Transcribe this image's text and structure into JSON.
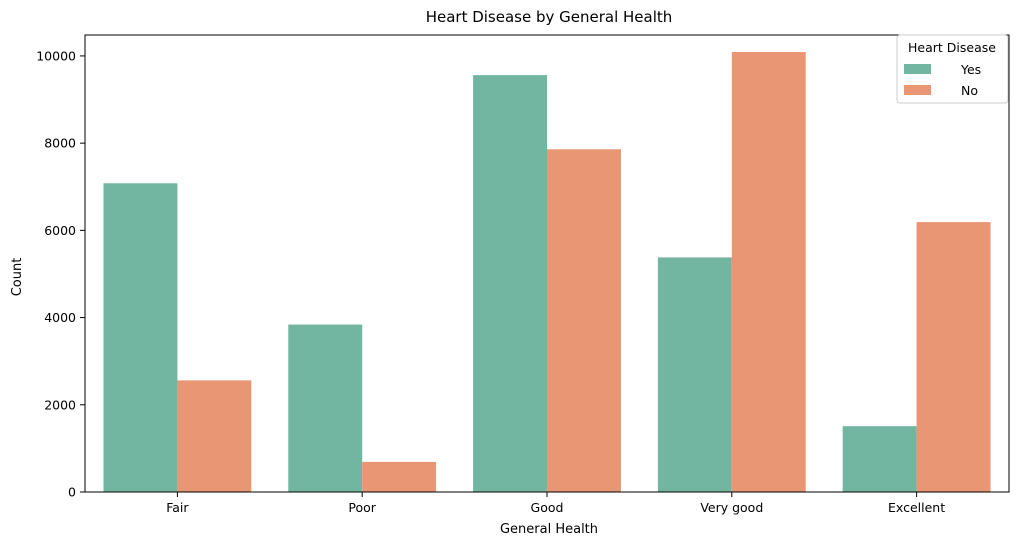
{
  "chart_data": {
    "type": "bar",
    "title": "Heart Disease by General Health",
    "xlabel": "General Health",
    "ylabel": "Count",
    "categories": [
      "Fair",
      "Poor",
      "Good",
      "Very good",
      "Excellent"
    ],
    "series": [
      {
        "name": "Yes",
        "values": [
          7080,
          3840,
          9560,
          5380,
          1510
        ],
        "color": "#72b6a1"
      },
      {
        "name": "No",
        "values": [
          2560,
          690,
          7860,
          10090,
          6190
        ],
        "color": "#e99675"
      }
    ],
    "ylim": [
      0,
      10480
    ],
    "yticks": [
      0,
      2000,
      4000,
      6000,
      8000,
      10000
    ],
    "ytick_labels": [
      "0",
      "2000",
      "4000",
      "6000",
      "8000",
      "10000"
    ],
    "legend": {
      "title": "Heart Disease",
      "position": "top-right"
    },
    "grid": false
  }
}
